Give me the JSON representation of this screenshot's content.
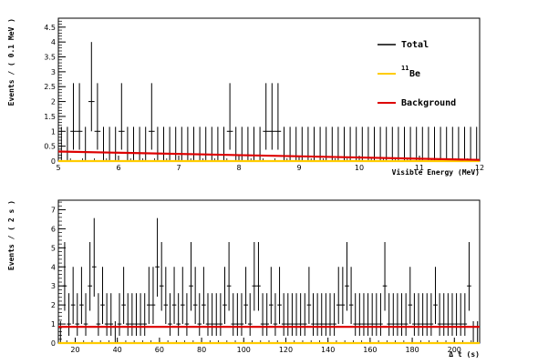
{
  "chart_data": [
    {
      "type": "scatter",
      "xlabel": "Visible Energy (MeV)",
      "ylabel": "Events / ( 0.1 MeV )",
      "xlim": [
        5,
        12
      ],
      "ylim": [
        0,
        4.8
      ],
      "x_ticks": [
        "5",
        "6",
        "7",
        "8",
        "9",
        "10",
        "11",
        "12"
      ],
      "y_ticks": [
        "0",
        "0.5",
        "1",
        "1.5",
        "2",
        "2.5",
        "3",
        "3.5",
        "4",
        "4.5"
      ],
      "legend_position": "top-right",
      "legend": [
        {
          "label": "Total",
          "color": "#000000"
        },
        {
          "label": "Be",
          "superscript": "11",
          "color": "#ffcc00"
        },
        {
          "label": "Background",
          "color": "#dd0000"
        }
      ],
      "bin_width": 0.1,
      "points": [
        {
          "x": 5.25,
          "y": 1
        },
        {
          "x": 5.35,
          "y": 1
        },
        {
          "x": 5.55,
          "y": 2
        },
        {
          "x": 5.65,
          "y": 1
        },
        {
          "x": 6.05,
          "y": 1
        },
        {
          "x": 6.55,
          "y": 1
        },
        {
          "x": 7.85,
          "y": 1
        },
        {
          "x": 8.45,
          "y": 1
        },
        {
          "x": 8.55,
          "y": 1
        },
        {
          "x": 8.65,
          "y": 1
        }
      ],
      "series": [
        {
          "name": "Total",
          "x": [
            5.0,
            12.0
          ],
          "y": [
            0.32,
            0.04
          ]
        },
        {
          "name": "Background",
          "x": [
            5.0,
            12.0
          ],
          "y": [
            0.32,
            0.04
          ]
        },
        {
          "name": "Be",
          "x": [
            5.0,
            12.0
          ],
          "y": [
            0.0,
            0.0
          ]
        }
      ]
    },
    {
      "type": "scatter",
      "xlabel": "Δ t (s)",
      "ylabel": "Events / ( 2 s )",
      "xlim": [
        12,
        212
      ],
      "ylim": [
        0,
        7.5
      ],
      "x_ticks": [
        "20",
        "40",
        "60",
        "80",
        "100",
        "120",
        "140",
        "160",
        "180",
        "200"
      ],
      "y_ticks": [
        "0",
        "1",
        "2",
        "3",
        "4",
        "5",
        "6",
        "7"
      ],
      "bin_width": 2,
      "points": [
        {
          "x": 15,
          "y": 3
        },
        {
          "x": 17,
          "y": 1
        },
        {
          "x": 19,
          "y": 2
        },
        {
          "x": 21,
          "y": 1
        },
        {
          "x": 23,
          "y": 2
        },
        {
          "x": 25,
          "y": 1
        },
        {
          "x": 27,
          "y": 3
        },
        {
          "x": 29,
          "y": 4
        },
        {
          "x": 31,
          "y": 1
        },
        {
          "x": 33,
          "y": 2
        },
        {
          "x": 35,
          "y": 1
        },
        {
          "x": 37,
          "y": 1
        },
        {
          "x": 41,
          "y": 1
        },
        {
          "x": 43,
          "y": 2
        },
        {
          "x": 45,
          "y": 1
        },
        {
          "x": 47,
          "y": 1
        },
        {
          "x": 49,
          "y": 1
        },
        {
          "x": 51,
          "y": 1
        },
        {
          "x": 53,
          "y": 1
        },
        {
          "x": 55,
          "y": 2
        },
        {
          "x": 57,
          "y": 2
        },
        {
          "x": 59,
          "y": 4
        },
        {
          "x": 61,
          "y": 3
        },
        {
          "x": 63,
          "y": 2
        },
        {
          "x": 65,
          "y": 1
        },
        {
          "x": 67,
          "y": 2
        },
        {
          "x": 69,
          "y": 1
        },
        {
          "x": 71,
          "y": 2
        },
        {
          "x": 73,
          "y": 1
        },
        {
          "x": 75,
          "y": 3
        },
        {
          "x": 77,
          "y": 2
        },
        {
          "x": 79,
          "y": 1
        },
        {
          "x": 81,
          "y": 2
        },
        {
          "x": 83,
          "y": 1
        },
        {
          "x": 85,
          "y": 1
        },
        {
          "x": 87,
          "y": 1
        },
        {
          "x": 89,
          "y": 1
        },
        {
          "x": 91,
          "y": 2
        },
        {
          "x": 93,
          "y": 3
        },
        {
          "x": 95,
          "y": 1
        },
        {
          "x": 97,
          "y": 1
        },
        {
          "x": 99,
          "y": 1
        },
        {
          "x": 101,
          "y": 2
        },
        {
          "x": 103,
          "y": 1
        },
        {
          "x": 105,
          "y": 3
        },
        {
          "x": 107,
          "y": 3
        },
        {
          "x": 109,
          "y": 1
        },
        {
          "x": 111,
          "y": 1
        },
        {
          "x": 113,
          "y": 2
        },
        {
          "x": 115,
          "y": 1
        },
        {
          "x": 117,
          "y": 2
        },
        {
          "x": 119,
          "y": 1
        },
        {
          "x": 121,
          "y": 1
        },
        {
          "x": 123,
          "y": 1
        },
        {
          "x": 125,
          "y": 1
        },
        {
          "x": 127,
          "y": 1
        },
        {
          "x": 129,
          "y": 1
        },
        {
          "x": 131,
          "y": 2
        },
        {
          "x": 133,
          "y": 1
        },
        {
          "x": 135,
          "y": 1
        },
        {
          "x": 137,
          "y": 1
        },
        {
          "x": 139,
          "y": 1
        },
        {
          "x": 141,
          "y": 1
        },
        {
          "x": 143,
          "y": 1
        },
        {
          "x": 145,
          "y": 2
        },
        {
          "x": 147,
          "y": 2
        },
        {
          "x": 149,
          "y": 3
        },
        {
          "x": 151,
          "y": 2
        },
        {
          "x": 153,
          "y": 1
        },
        {
          "x": 155,
          "y": 1
        },
        {
          "x": 157,
          "y": 1
        },
        {
          "x": 159,
          "y": 1
        },
        {
          "x": 161,
          "y": 1
        },
        {
          "x": 163,
          "y": 1
        },
        {
          "x": 165,
          "y": 1
        },
        {
          "x": 167,
          "y": 3
        },
        {
          "x": 169,
          "y": 1
        },
        {
          "x": 171,
          "y": 1
        },
        {
          "x": 173,
          "y": 1
        },
        {
          "x": 175,
          "y": 1
        },
        {
          "x": 177,
          "y": 1
        },
        {
          "x": 179,
          "y": 2
        },
        {
          "x": 181,
          "y": 1
        },
        {
          "x": 183,
          "y": 1
        },
        {
          "x": 185,
          "y": 1
        },
        {
          "x": 187,
          "y": 1
        },
        {
          "x": 189,
          "y": 1
        },
        {
          "x": 191,
          "y": 2
        },
        {
          "x": 193,
          "y": 1
        },
        {
          "x": 195,
          "y": 1
        },
        {
          "x": 197,
          "y": 1
        },
        {
          "x": 199,
          "y": 1
        },
        {
          "x": 201,
          "y": 1
        },
        {
          "x": 203,
          "y": 1
        },
        {
          "x": 205,
          "y": 1
        },
        {
          "x": 207,
          "y": 3
        }
      ],
      "series": [
        {
          "name": "Total",
          "x": [
            12,
            212
          ],
          "y": [
            0.85,
            0.85
          ]
        },
        {
          "name": "Background",
          "x": [
            12,
            212
          ],
          "y": [
            0.85,
            0.85
          ]
        },
        {
          "name": "Be",
          "x": [
            12,
            212
          ],
          "y": [
            0.0,
            0.0
          ]
        }
      ]
    }
  ]
}
